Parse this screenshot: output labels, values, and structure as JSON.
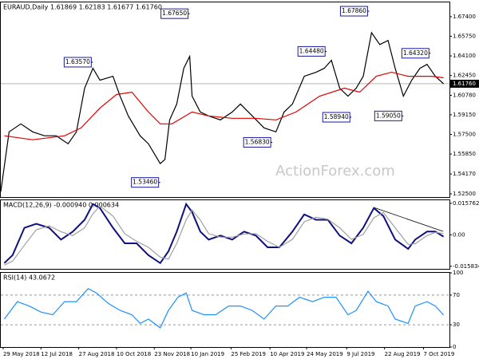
{
  "chart_data": [
    {
      "type": "line",
      "title": "EURAUD,Daily 1.61869 1.62183 1.61677 1.61760",
      "watermark": "ActionForex.com",
      "xlim": [
        0,
        380
      ],
      "ylim": [
        1.5223,
        1.686
      ],
      "yticks": [
        {
          "value": 1.674,
          "label": "1.67400"
        },
        {
          "value": 1.6575,
          "label": "1.65750"
        },
        {
          "value": 1.641,
          "label": "1.64100"
        },
        {
          "value": 1.6245,
          "label": "1.62450"
        },
        {
          "value": 1.6078,
          "label": "1.60780"
        },
        {
          "value": 1.5915,
          "label": "1.59150"
        },
        {
          "value": 1.575,
          "label": "1.57500"
        },
        {
          "value": 1.5585,
          "label": "1.55850"
        },
        {
          "value": 1.5417,
          "label": "1.54170"
        },
        {
          "value": 1.525,
          "label": "1.52500"
        }
      ],
      "last_price": {
        "value": 1.6176,
        "label": "1.61760"
      },
      "series": [
        {
          "color": "#000000",
          "x": [
            0,
            7,
            17,
            27,
            37,
            47,
            57,
            64,
            71,
            78,
            84,
            95,
            101,
            108,
            118,
            125,
            135,
            139,
            143,
            149,
            155,
            160,
            162,
            169,
            176,
            186,
            196,
            203,
            213,
            223,
            233,
            240,
            247,
            257,
            267,
            274,
            280,
            287,
            294,
            301,
            307,
            314,
            321,
            328,
            334,
            341,
            348,
            355,
            361,
            368,
            375
          ],
          "values": [
            1.527,
            1.5771,
            1.5838,
            1.5771,
            1.5738,
            1.5738,
            1.5671,
            1.5771,
            1.6139,
            1.6306,
            1.6206,
            1.6239,
            1.6072,
            1.5905,
            1.5738,
            1.5671,
            1.5504,
            1.5538,
            1.5872,
            1.6005,
            1.6306,
            1.6406,
            1.6072,
            1.5938,
            1.5905,
            1.5872,
            1.5938,
            1.6005,
            1.5905,
            1.5805,
            1.5771,
            1.5938,
            1.6005,
            1.6239,
            1.6272,
            1.6306,
            1.6373,
            1.6139,
            1.6072,
            1.6139,
            1.6239,
            1.6606,
            1.6506,
            1.654,
            1.6306,
            1.6072,
            1.6206,
            1.6306,
            1.6339,
            1.6239,
            1.6176
          ]
        },
        {
          "color": "#e00000",
          "x": [
            3,
            27,
            54,
            68,
            84,
            98,
            111,
            125,
            135,
            145,
            162,
            176,
            196,
            216,
            233,
            250,
            270,
            291,
            304,
            318,
            331,
            345,
            365,
            375
          ],
          "values": [
            1.5738,
            1.5705,
            1.5738,
            1.5805,
            1.5972,
            1.6085,
            1.6105,
            1.5938,
            1.5838,
            1.5838,
            1.5938,
            1.5905,
            1.5885,
            1.5885,
            1.5872,
            1.5938,
            1.6072,
            1.6139,
            1.6105,
            1.6239,
            1.6272,
            1.6239,
            1.6239,
            1.6226
          ]
        }
      ],
      "annotations": [
        {
          "label": "1.63570",
          "value": 1.6357,
          "x": 78
        },
        {
          "label": "1.67650",
          "value": 1.6765,
          "x": 160
        },
        {
          "label": "1.53460",
          "value": 1.5346,
          "x": 135
        },
        {
          "label": "1.56830",
          "value": 1.5683,
          "x": 230
        },
        {
          "label": "1.64480",
          "value": 1.6448,
          "x": 276
        },
        {
          "label": "1.58940",
          "value": 1.5894,
          "x": 297
        },
        {
          "label": "1.67860",
          "value": 1.6786,
          "x": 312
        },
        {
          "label": "1.59050",
          "value": 1.5905,
          "x": 341
        },
        {
          "label": "1.64320",
          "value": 1.6432,
          "x": 364
        }
      ]
    },
    {
      "type": "line",
      "title": "MACD(12,26,9) -0.000940 0.000634",
      "xlim": [
        0,
        380
      ],
      "ylim": [
        -0.0171,
        0.0173
      ],
      "yticks": [
        {
          "value": 0.015762,
          "label": "0.015762"
        },
        {
          "value": 0,
          "label": "0.00"
        },
        {
          "value": -0.015834,
          "label": "-0.015834"
        }
      ],
      "series": [
        {
          "color": "#101080",
          "x": [
            3,
            10,
            20,
            30,
            41,
            51,
            61,
            71,
            78,
            84,
            95,
            105,
            115,
            125,
            135,
            142,
            149,
            157,
            162,
            169,
            176,
            186,
            196,
            206,
            216,
            226,
            236,
            247,
            257,
            267,
            277,
            287,
            297,
            307,
            316,
            324,
            334,
            345,
            351,
            361,
            368,
            375
          ],
          "values": [
            -0.0142,
            -0.0102,
            0.0035,
            0.0055,
            0.0035,
            -0.0024,
            0.0016,
            0.0075,
            0.0154,
            0.0134,
            0.0035,
            -0.0043,
            -0.0043,
            -0.0102,
            -0.0142,
            -0.0083,
            0.0016,
            0.0154,
            0.0114,
            0.0016,
            -0.0024,
            -0.0004,
            -0.0024,
            0.0016,
            -0.0004,
            -0.0063,
            -0.0063,
            0.0016,
            0.0102,
            0.0075,
            0.0075,
            -0.0004,
            -0.0043,
            0.0035,
            0.0134,
            0.0094,
            -0.0024,
            -0.0071,
            -0.0024,
            0.0016,
            0.0016,
            -0.00094
          ]
        },
        {
          "color": "#a0a0a0",
          "x": [
            3,
            10,
            20,
            30,
            41,
            51,
            61,
            71,
            78,
            84,
            95,
            105,
            115,
            125,
            135,
            142,
            149,
            157,
            162,
            169,
            176,
            186,
            196,
            206,
            216,
            226,
            236,
            247,
            257,
            267,
            277,
            287,
            297,
            307,
            316,
            324,
            334,
            345,
            351,
            361,
            368,
            375
          ],
          "values": [
            -0.0152,
            -0.0132,
            -0.0052,
            0.0025,
            0.0045,
            0.0015,
            -0.0004,
            0.0035,
            0.0105,
            0.0144,
            0.0094,
            0.0005,
            -0.0033,
            -0.0063,
            -0.0112,
            -0.0122,
            -0.0043,
            0.0075,
            0.0124,
            0.0074,
            0.0006,
            -0.0012,
            -0.0012,
            0.0004,
            0.0006,
            -0.0033,
            -0.0063,
            -0.0023,
            0.0065,
            0.0088,
            0.0078,
            0.0035,
            -0.0023,
            0.0002,
            0.0085,
            0.0112,
            0.0035,
            -0.0048,
            -0.0045,
            -0.0004,
            0.0012,
            0.000634
          ]
        }
      ]
    },
    {
      "type": "line",
      "title": "RSI(14) 43.0672",
      "xlim": [
        0,
        380
      ],
      "ylim": [
        0,
        100
      ],
      "yticks": [
        100,
        70,
        30,
        0
      ],
      "levels": [
        70,
        30
      ],
      "xticks": [
        {
          "value": 2,
          "label": "29 May 2018"
        },
        {
          "value": 34,
          "label": "12 Jul 2018"
        },
        {
          "value": 66,
          "label": "27 Aug 2018"
        },
        {
          "value": 98,
          "label": "10 Oct 2018"
        },
        {
          "value": 130,
          "label": "23 Nov 2018"
        },
        {
          "value": 161,
          "label": "10 Jan 2019"
        },
        {
          "value": 195,
          "label": "25 Feb 2019"
        },
        {
          "value": 228,
          "label": "10 Apr 2019"
        },
        {
          "value": 259,
          "label": "24 May 2019"
        },
        {
          "value": 293,
          "label": "9 Jul 2019"
        },
        {
          "value": 325,
          "label": "22 Aug 2019"
        },
        {
          "value": 358,
          "label": "7 Oct 2019"
        }
      ],
      "series": [
        {
          "color": "#1e90ff",
          "x": [
            3,
            14,
            24,
            34,
            44,
            54,
            64,
            74,
            81,
            91,
            101,
            111,
            118,
            125,
            135,
            142,
            150,
            157,
            162,
            172,
            182,
            193,
            203,
            213,
            223,
            233,
            243,
            253,
            264,
            274,
            284,
            294,
            301,
            311,
            318,
            328,
            334,
            345,
            351,
            361,
            368,
            375
          ],
          "values": [
            37.6,
            61.2,
            55.3,
            47.1,
            43.5,
            61.2,
            61.2,
            78.8,
            72.9,
            58.8,
            49.4,
            43.5,
            31.8,
            37.6,
            25.9,
            49.4,
            67.1,
            72.9,
            49.4,
            43.5,
            43.5,
            55.3,
            55.3,
            49.4,
            37.6,
            55.3,
            55.3,
            67.1,
            61.2,
            67.1,
            67.1,
            43.5,
            49.4,
            75.3,
            61.2,
            55.3,
            37.6,
            31.8,
            55.3,
            61.2,
            55.3,
            43.0672
          ]
        }
      ]
    }
  ]
}
